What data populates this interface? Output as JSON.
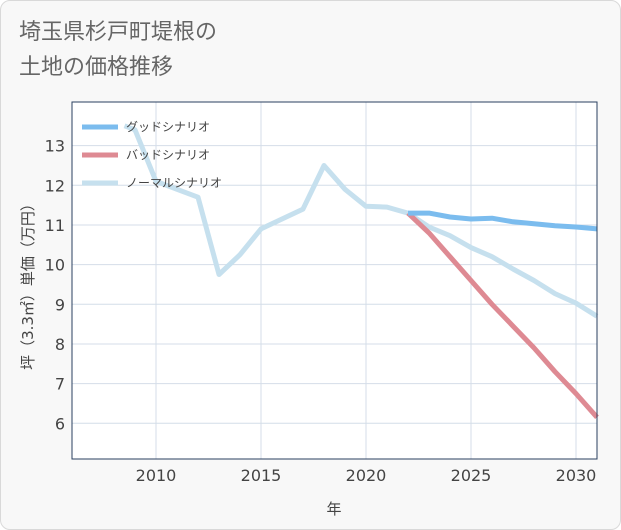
{
  "title_lines": [
    "埼玉県杉戸町堤根の",
    "土地の価格推移"
  ],
  "chart_data": {
    "type": "line",
    "xlabel": "年",
    "ylabel": "坪（3.3㎡）単価（万円）",
    "xlim": [
      2006,
      2031
    ],
    "ylim": [
      5.1,
      14.1
    ],
    "x_ticks": [
      2010,
      2015,
      2020,
      2025,
      2030
    ],
    "y_ticks": [
      6,
      7,
      8,
      9,
      10,
      11,
      12,
      13
    ],
    "grid": true,
    "legend_position": "top-left",
    "series": [
      {
        "name": "グッドシナリオ",
        "color": "#7bbcee",
        "x": [
          2022,
          2023,
          2024,
          2025,
          2026,
          2027,
          2028,
          2029,
          2030,
          2031
        ],
        "y": [
          11.3,
          11.3,
          11.2,
          11.15,
          11.17,
          11.08,
          11.03,
          10.98,
          10.95,
          10.9
        ]
      },
      {
        "name": "バッドシナリオ",
        "color": "#de8a93",
        "x": [
          2022,
          2023,
          2024,
          2025,
          2026,
          2027,
          2028,
          2029,
          2030,
          2031
        ],
        "y": [
          11.3,
          10.8,
          10.2,
          9.6,
          9.0,
          8.45,
          7.9,
          7.3,
          6.75,
          6.15
        ]
      },
      {
        "name": "ノーマルシナリオ",
        "color": "#c6e0ee",
        "x": [
          2008.5,
          2009,
          2010,
          2011,
          2012,
          2013,
          2014,
          2015,
          2016,
          2017,
          2018,
          2019,
          2020,
          2021,
          2022,
          2023,
          2024,
          2025,
          2026,
          2027,
          2028,
          2029,
          2030,
          2031
        ],
        "y": [
          13.5,
          13.4,
          12.1,
          11.9,
          11.7,
          9.75,
          10.25,
          10.9,
          11.15,
          11.4,
          12.5,
          11.9,
          11.47,
          11.45,
          11.3,
          10.95,
          10.73,
          10.43,
          10.2,
          9.89,
          9.6,
          9.27,
          9.03,
          8.7
        ]
      }
    ]
  }
}
